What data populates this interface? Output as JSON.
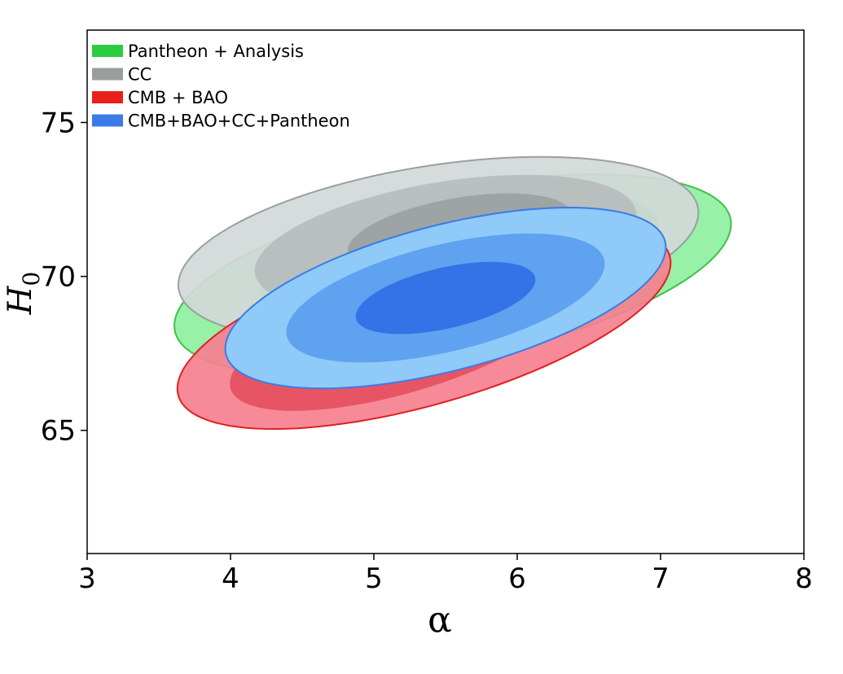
{
  "chart_data": {
    "type": "contour",
    "xlabel": "α",
    "ylabel_main": "H",
    "ylabel_sub": "0",
    "xlim": [
      3,
      8
    ],
    "ylim": [
      61,
      78
    ],
    "xticks": [
      3,
      4,
      5,
      6,
      7,
      8
    ],
    "yticks": [
      65,
      70,
      75
    ],
    "grid": false,
    "legend_position": "top-left",
    "series": [
      {
        "name": "Pantheon + Analysis",
        "legend_color": "#2ecc40",
        "colors": [
          "#8ef0a0",
          "#4fd873"
        ],
        "stroke": "#3fbf4f",
        "levels": [
          {
            "center": [
              5.55,
              70.05
            ],
            "a": 2.05,
            "b": 4.2,
            "angle": 0.68
          },
          {
            "center": [
              5.6,
              70.5
            ],
            "a": 1.45,
            "b": 3.1,
            "angle": 0.68
          }
        ]
      },
      {
        "name": "CC",
        "legend_color": "#999e9d",
        "colors": [
          "#d3d8d8",
          "#b7bdbd",
          "#9ba2a2"
        ],
        "stroke": "#9aa0a0",
        "levels": [
          {
            "center": [
              5.45,
              70.9
            ],
            "a": 1.82,
            "b": 4.3,
            "angle": 0.68
          },
          {
            "center": [
              5.5,
              71.1
            ],
            "a": 1.35,
            "b": 3.1,
            "angle": 0.68
          },
          {
            "center": [
              5.6,
              71.4
            ],
            "a": 0.8,
            "b": 1.8,
            "angle": 0.68
          }
        ]
      },
      {
        "name": "CMB + BAO",
        "legend_color": "#e8201c",
        "colors": [
          "#f5808f",
          "#e5505f"
        ],
        "stroke": "#e02020",
        "levels": [
          {
            "center": [
              5.35,
              68.4
            ],
            "a": 1.98,
            "b": 3.35,
            "angle": 0.78
          },
          {
            "center": [
              5.2,
              68.0
            ],
            "a": 1.4,
            "b": 2.3,
            "angle": 0.78
          }
        ]
      },
      {
        "name": "CMB+BAO+CC+Pantheon",
        "legend_color": "#3a7be8",
        "colors": [
          "#8fcaf8",
          "#5ea2f0",
          "#3472e8"
        ],
        "stroke": "#3a7be8",
        "levels": [
          {
            "center": [
              5.5,
              69.3
            ],
            "a": 1.72,
            "b": 3.15,
            "angle": 0.78
          },
          {
            "center": [
              5.5,
              69.3
            ],
            "a": 1.22,
            "b": 2.35,
            "angle": 0.78
          },
          {
            "center": [
              5.5,
              69.3
            ],
            "a": 0.68,
            "b": 1.35,
            "angle": 0.78
          }
        ]
      }
    ]
  }
}
